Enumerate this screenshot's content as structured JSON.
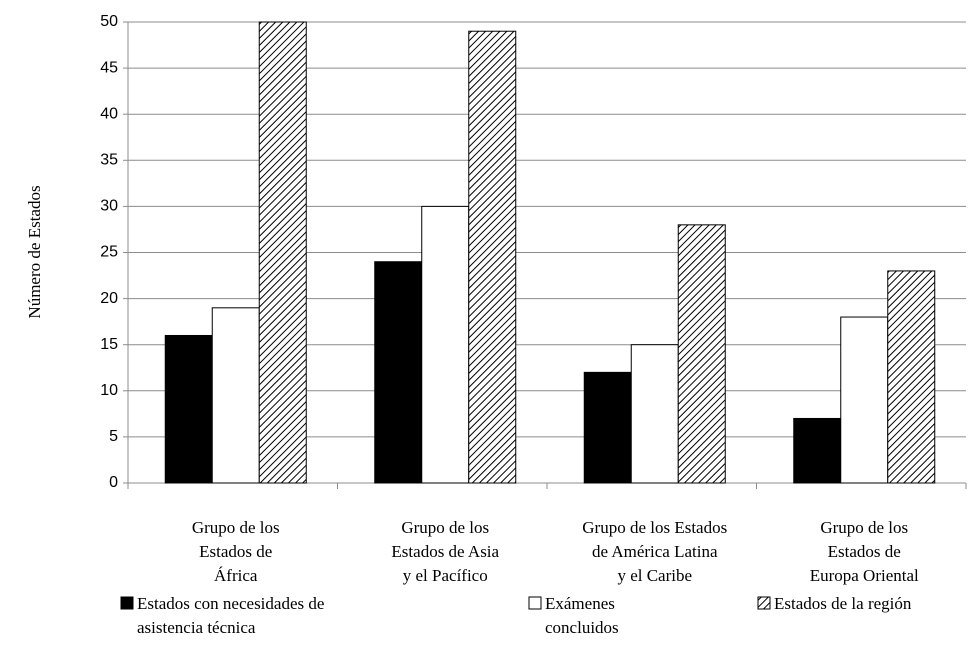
{
  "chart_data": {
    "type": "bar",
    "y_label": "Número de Estados",
    "categories": [
      "Grupo de los\nEstados de\nÁfrica",
      "Grupo de los\nEstados de Asia\ny el Pacífico",
      "Grupo de los Estados\nde América Latina\ny el Caribe",
      "Grupo de los\nEstados de\nEuropa Oriental"
    ],
    "series": [
      {
        "name": "Estados con necesidades de\nasistencia técnica",
        "color": "#000000",
        "values": [
          16,
          24,
          12,
          7
        ]
      },
      {
        "name": "Exámenes\nconcluidos",
        "color": "#ffffff",
        "values": [
          19,
          30,
          15,
          18
        ]
      },
      {
        "name": "Estados de la región",
        "color": "#ffffff",
        "pattern": "hatch",
        "values": [
          50,
          49,
          28,
          23
        ]
      }
    ],
    "ylim": [
      0,
      50
    ],
    "yticks": [
      0,
      5,
      10,
      15,
      20,
      25,
      30,
      35,
      40,
      45,
      50
    ],
    "grid": true
  }
}
